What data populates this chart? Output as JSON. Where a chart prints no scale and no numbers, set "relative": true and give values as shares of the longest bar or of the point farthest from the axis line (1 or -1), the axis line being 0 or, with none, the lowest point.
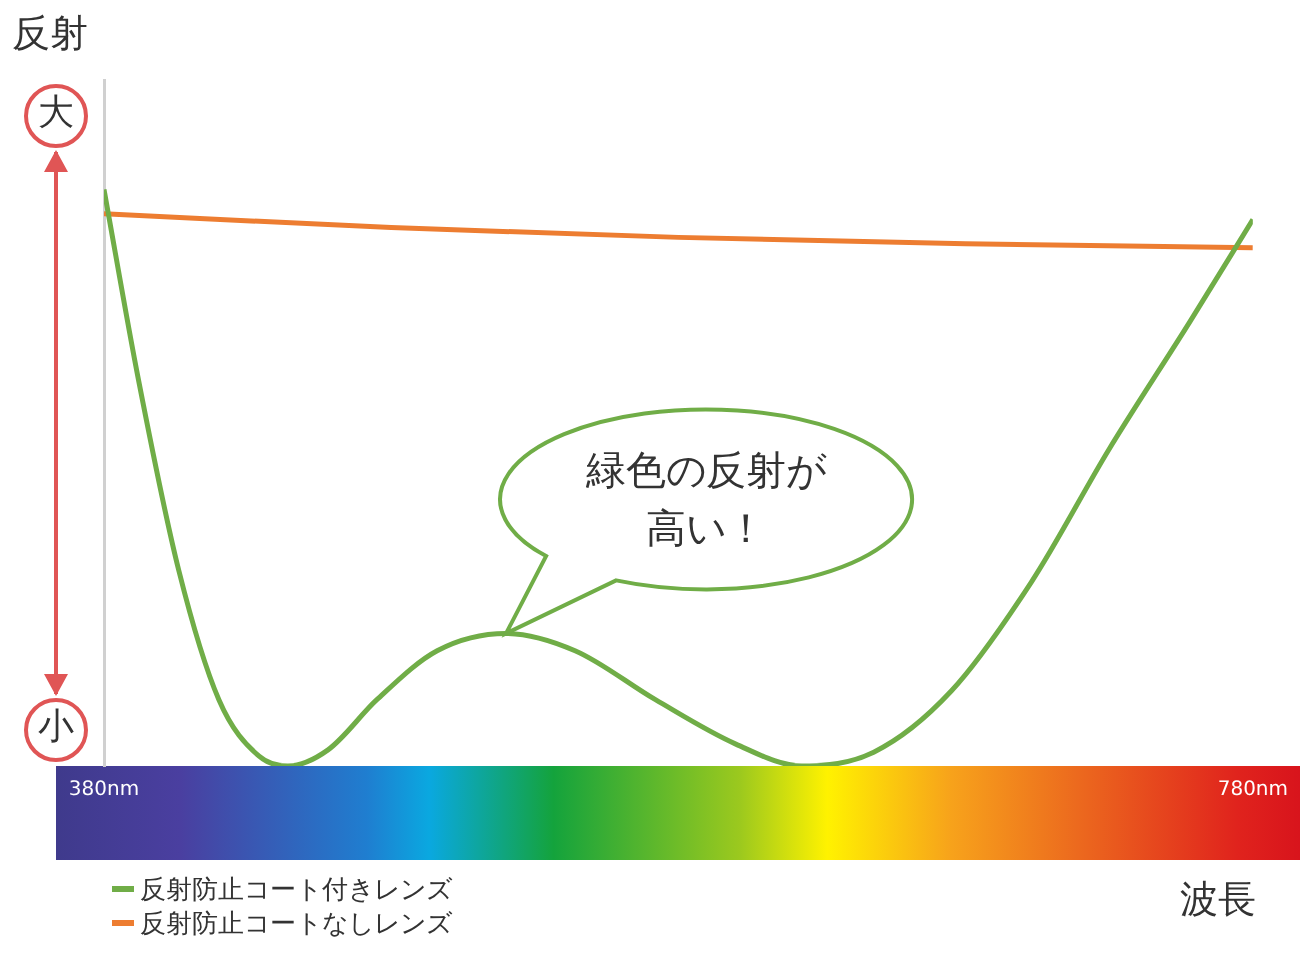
{
  "chart_data": {
    "type": "line",
    "relative": true,
    "ylabel": "反射",
    "xlabel": "波長",
    "xlim": [
      380,
      780
    ],
    "xticks": [
      {
        "value": 380,
        "label": "380nm"
      },
      {
        "value": 780,
        "label": "780nm"
      }
    ],
    "series": [
      {
        "name": "反射防止コート付きレンズ",
        "color": "#70ad47",
        "x": [
          380,
          392,
          406,
          420,
          434,
          444,
          458,
          475,
          496,
          520,
          544,
          572,
          600,
          623,
          648,
          675,
          703,
          730,
          758,
          780
        ],
        "values": [
          1,
          0.67,
          0.34,
          0.115,
          0.017,
          0,
          0.028,
          0.115,
          0.2,
          0.23,
          0.2,
          0.115,
          0.038,
          0,
          0.024,
          0.13,
          0.32,
          0.55,
          0.77,
          0.948
        ]
      },
      {
        "name": "反射防止コートなしレンズ",
        "color": "#ed7d31",
        "x": [
          380,
          480,
          580,
          680,
          780
        ],
        "values": [
          0.958,
          0.934,
          0.917,
          0.906,
          0.899
        ]
      }
    ],
    "annotations": [
      "大",
      "小",
      {
        "text": "緑色の反射が高い！",
        "x": 520,
        "y": 0.23
      }
    ],
    "legend": "bottom left",
    "grid": false,
    "marker": "none",
    "line_style": "solid"
  }
}
